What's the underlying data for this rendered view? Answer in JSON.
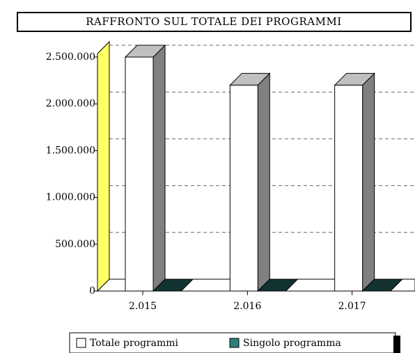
{
  "chart_data": {
    "type": "bar3d",
    "title": "RAFFRONTO SUL TOTALE DEI PROGRAMMI",
    "categories": [
      "2.015",
      "2.016",
      "2.017"
    ],
    "series": [
      {
        "name": "Totale programmi",
        "color": "#ffffff",
        "values": [
          2500000,
          2200000,
          2200000
        ]
      },
      {
        "name": "Singolo programma",
        "color": "#2f7f7f",
        "values": [
          0,
          0,
          0
        ]
      }
    ],
    "ylim": [
      0,
      2500000
    ],
    "yticks": [
      0,
      {
        "value": 500000,
        "label": "500.000"
      },
      {
        "value": 1000000,
        "label": "1.000.000"
      },
      {
        "value": 1500000,
        "label": "1.500.000"
      },
      {
        "value": 2000000,
        "label": "2.000.000"
      },
      {
        "value": 2500000,
        "label": "2.500.000"
      }
    ],
    "grid": true
  }
}
